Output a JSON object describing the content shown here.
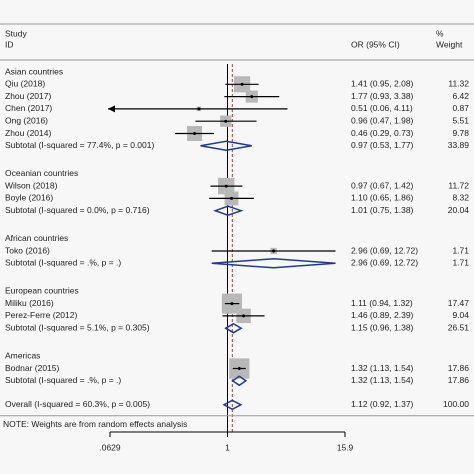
{
  "chart_data": {
    "type": "forest",
    "header": {
      "study": "Study",
      "id": "ID",
      "effect": "OR (95% CI)",
      "pct": "%",
      "weight": "Weight"
    },
    "xscale": "log",
    "xlim": [
      0.0629,
      15.9
    ],
    "xticks": [
      {
        "value": 0.0629,
        "label": ".0629"
      },
      1,
      15.9
    ],
    "reference_line": 1,
    "note": "NOTE: Weights are from random effects analysis",
    "groups": [
      {
        "name": "Asian countries",
        "studies": [
          {
            "study": "Qiu (2018)",
            "or": 1.41,
            "lo": 0.95,
            "hi": 2.08,
            "ci_label": "1.41 (0.95, 2.08)",
            "weight": 11.32
          },
          {
            "study": "Zhou (2017)",
            "or": 1.77,
            "lo": 0.93,
            "hi": 3.38,
            "ci_label": "1.77 (0.93, 3.38)",
            "weight": 6.42
          },
          {
            "study": "Chen (2017)",
            "or": 0.51,
            "lo": 0.06,
            "hi": 4.11,
            "ci_label": "0.51 (0.06, 4.11)",
            "weight": 0.87
          },
          {
            "study": "Ong (2016)",
            "or": 0.96,
            "lo": 0.47,
            "hi": 1.98,
            "ci_label": "0.96 (0.47, 1.98)",
            "weight": 5.51
          },
          {
            "study": "Zhou (2014)",
            "or": 0.46,
            "lo": 0.29,
            "hi": 0.73,
            "ci_label": "0.46 (0.29, 0.73)",
            "weight": 9.78
          }
        ],
        "subtotal": {
          "label": "Subtotal  (I-squared = 77.4%, p = 0.001)",
          "or": 0.97,
          "lo": 0.53,
          "hi": 1.77,
          "ci_label": "0.97 (0.53, 1.77)",
          "weight": 33.89
        }
      },
      {
        "name": "Oceanian countries",
        "studies": [
          {
            "study": "Wilson (2018)",
            "or": 0.97,
            "lo": 0.67,
            "hi": 1.42,
            "ci_label": "0.97 (0.67, 1.42)",
            "weight": 11.72
          },
          {
            "study": "Boyle (2016)",
            "or": 1.1,
            "lo": 0.65,
            "hi": 1.86,
            "ci_label": "1.10 (0.65, 1.86)",
            "weight": 8.32
          }
        ],
        "subtotal": {
          "label": "Subtotal  (I-squared = 0.0%, p = 0.716)",
          "or": 1.01,
          "lo": 0.75,
          "hi": 1.38,
          "ci_label": "1.01 (0.75, 1.38)",
          "weight": 20.04
        }
      },
      {
        "name": "African countries",
        "studies": [
          {
            "study": "Toko (2016)",
            "or": 2.96,
            "lo": 0.69,
            "hi": 12.72,
            "ci_label": "2.96 (0.69, 12.72)",
            "weight": 1.71
          }
        ],
        "subtotal": {
          "label": "Subtotal  (I-squared = .%, p = .)",
          "or": 2.96,
          "lo": 0.69,
          "hi": 12.72,
          "ci_label": "2.96 (0.69, 12.72)",
          "weight": 1.71
        }
      },
      {
        "name": "European countries",
        "studies": [
          {
            "study": "Miliku (2016)",
            "or": 1.11,
            "lo": 0.94,
            "hi": 1.32,
            "ci_label": "1.11 (0.94, 1.32)",
            "weight": 17.47
          },
          {
            "study": "Perez-Ferre (2012)",
            "or": 1.46,
            "lo": 0.89,
            "hi": 2.39,
            "ci_label": "1.46 (0.89, 2.39)",
            "weight": 9.04
          }
        ],
        "subtotal": {
          "label": "Subtotal  (I-squared = 5.1%, p = 0.305)",
          "or": 1.15,
          "lo": 0.96,
          "hi": 1.38,
          "ci_label": "1.15 (0.96, 1.38)",
          "weight": 26.51
        }
      },
      {
        "name": "Americas",
        "studies": [
          {
            "study": "Bodnar (2015)",
            "or": 1.32,
            "lo": 1.13,
            "hi": 1.54,
            "ci_label": "1.32 (1.13, 1.54)",
            "weight": 17.86
          }
        ],
        "subtotal": {
          "label": "Subtotal  (I-squared = .%, p = .)",
          "or": 1.32,
          "lo": 1.13,
          "hi": 1.54,
          "ci_label": "1.32 (1.13, 1.54)",
          "weight": 17.86
        }
      }
    ],
    "overall": {
      "label": "Overall  (I-squared = 60.3%, p = 0.005)",
      "or": 1.12,
      "lo": 0.92,
      "hi": 1.37,
      "ci_label": "1.12 (0.92, 1.37)",
      "weight": 100,
      "weight_label": "100.00"
    }
  }
}
